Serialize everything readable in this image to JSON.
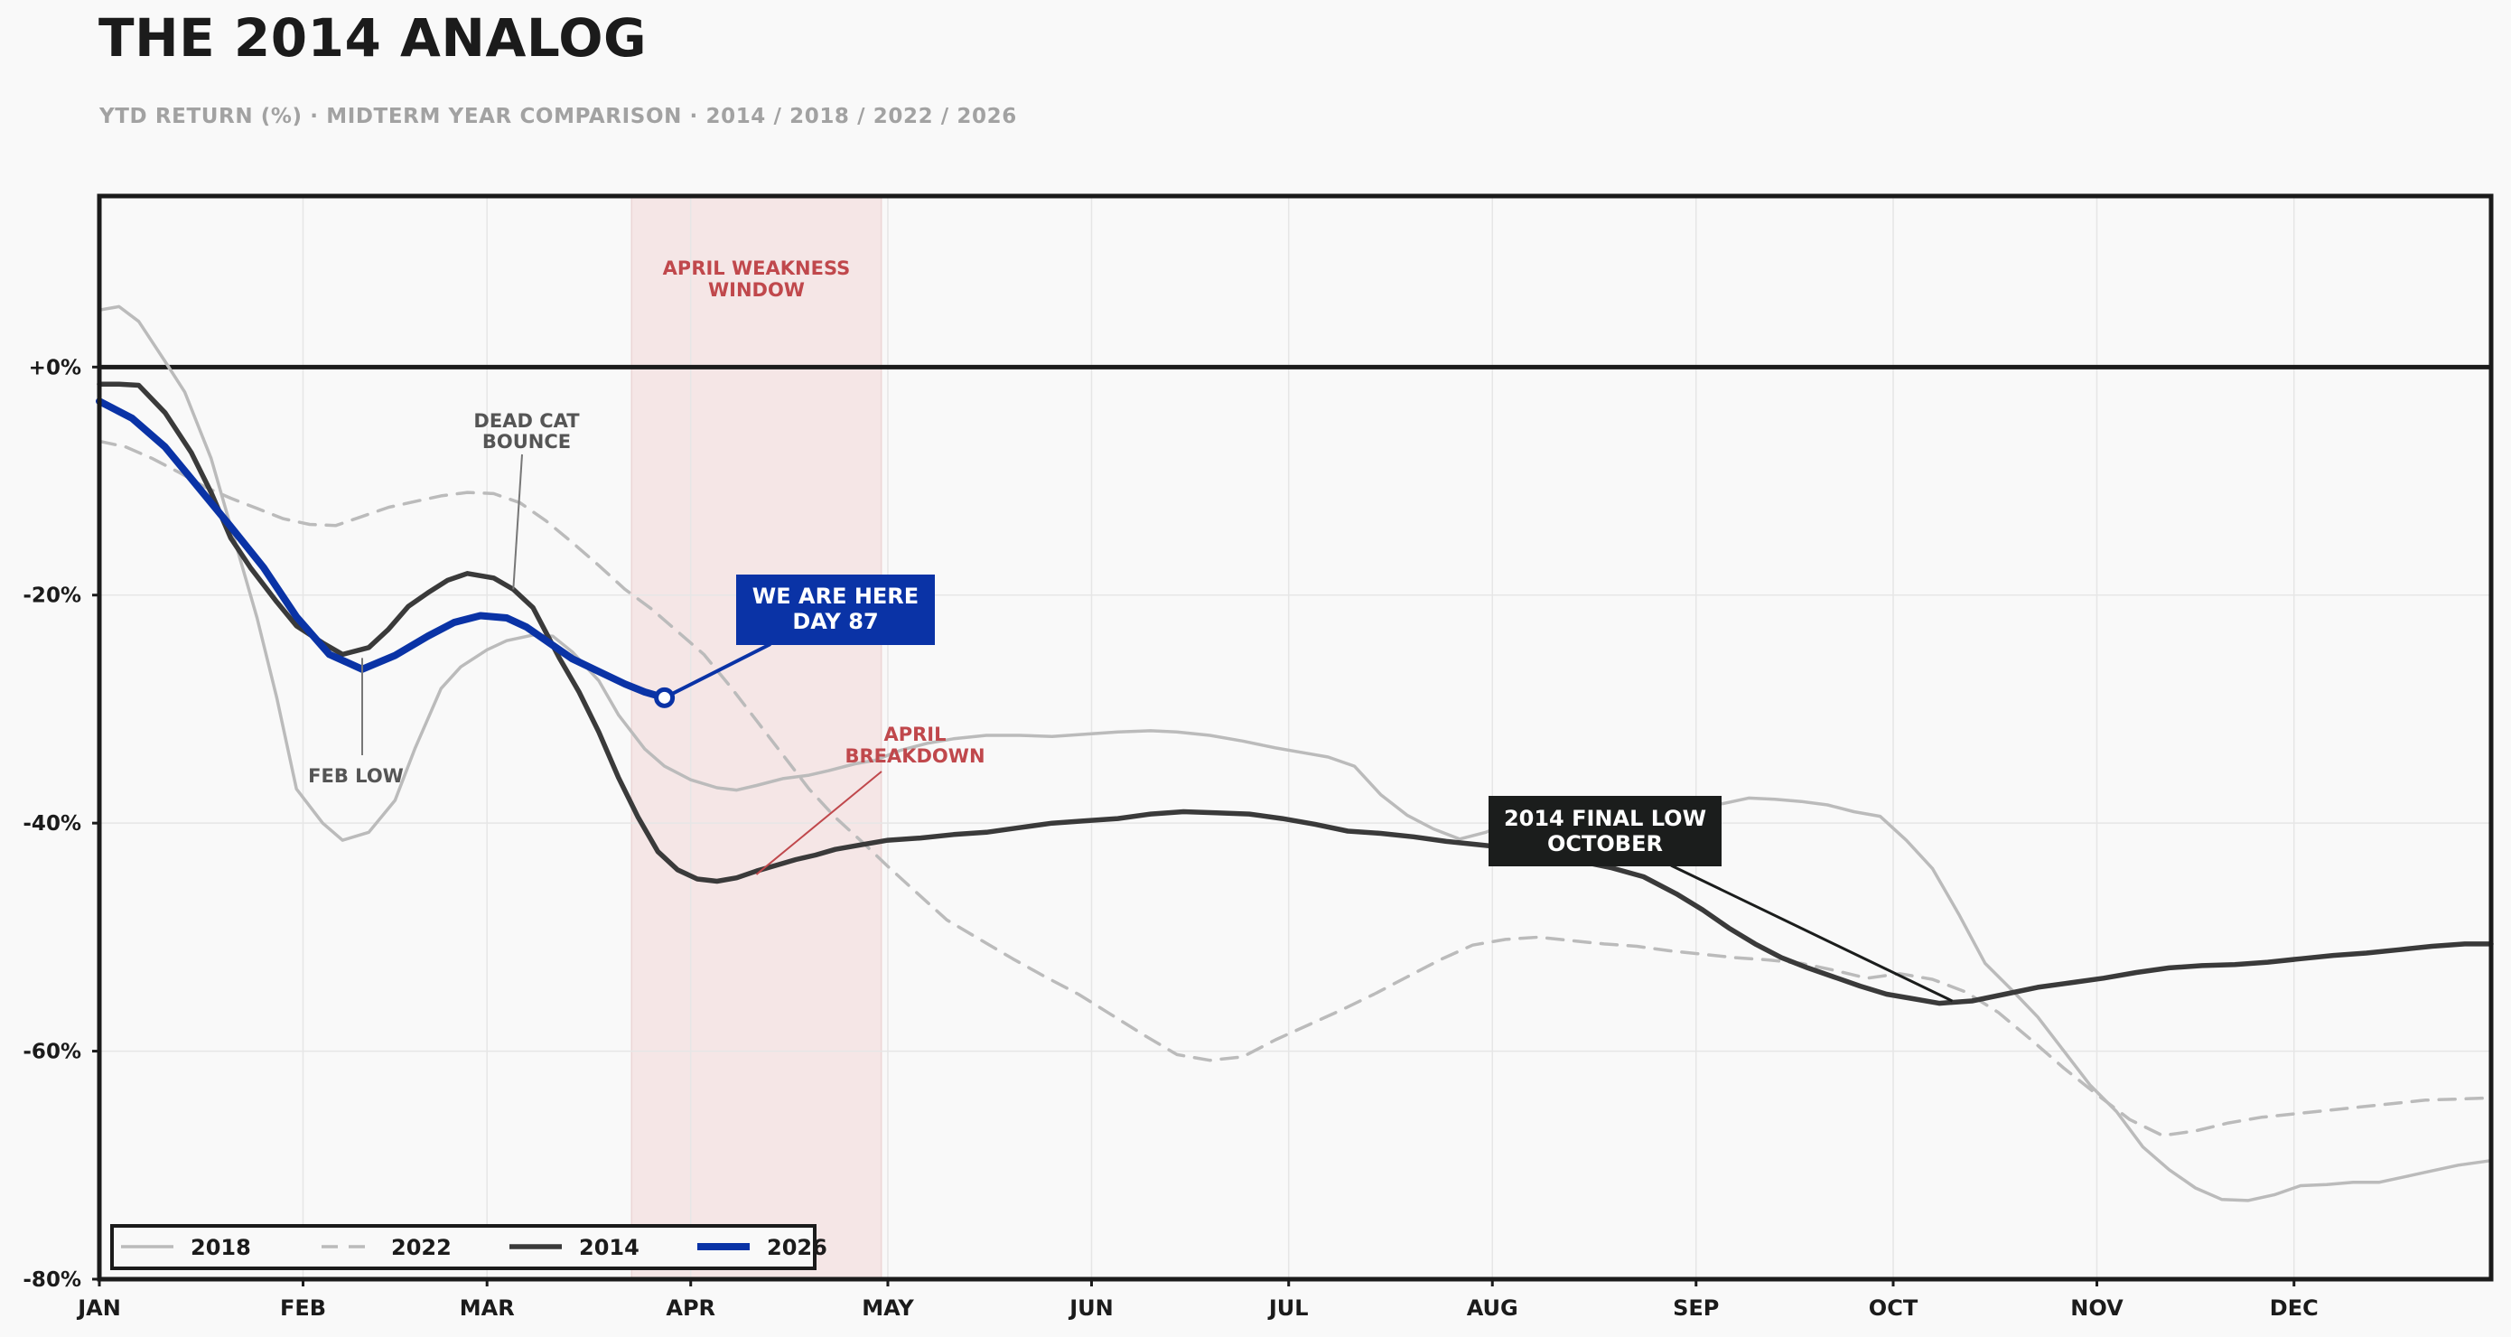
{
  "title": "THE 2014 ANALOG",
  "subtitle": "YTD RETURN (%)  ·  MIDTERM YEAR COMPARISON  ·  2014 / 2018 / 2022 / 2026",
  "chart_data": {
    "type": "line",
    "xlabel": "",
    "ylabel": "",
    "ylim": [
      -80,
      15
    ],
    "xlim": [
      1,
      365
    ],
    "grid": true,
    "legend_position": "bottom-left",
    "y_ticks": [
      0,
      -20,
      -40,
      -60,
      -80
    ],
    "y_tick_labels": [
      "+0%",
      "-20%",
      "-40%",
      "-60%",
      "-80%"
    ],
    "x_ticks": [
      {
        "day": 1,
        "label": "JAN"
      },
      {
        "day": 32,
        "label": "FEB"
      },
      {
        "day": 60,
        "label": "MAR"
      },
      {
        "day": 91,
        "label": "APR"
      },
      {
        "day": 121,
        "label": "MAY"
      },
      {
        "day": 152,
        "label": "JUN"
      },
      {
        "day": 182,
        "label": "JUL"
      },
      {
        "day": 213,
        "label": "AUG"
      },
      {
        "day": 244,
        "label": "SEP"
      },
      {
        "day": 274,
        "label": "OCT"
      },
      {
        "day": 305,
        "label": "NOV"
      },
      {
        "day": 335,
        "label": "DEC"
      }
    ],
    "shaded_region": {
      "x_start": 82,
      "x_end": 120,
      "label": "APRIL WEAKNESS\nWINDOW",
      "color": "#f5e6e6",
      "label_color": "#c0484c"
    },
    "series": [
      {
        "name": "2018",
        "color": "#bbbbbb",
        "style": "solid",
        "x": [
          1,
          4,
          7,
          11,
          14,
          18,
          21,
          25,
          28,
          31,
          35,
          38,
          42,
          46,
          49,
          53,
          56,
          60,
          63,
          67,
          70,
          73,
          77,
          80,
          84,
          87,
          91,
          95,
          98,
          101,
          105,
          109,
          112,
          116,
          119,
          123,
          127,
          131,
          136,
          141,
          146,
          151,
          156,
          161,
          165,
          170,
          175,
          180,
          185,
          188,
          192,
          196,
          200,
          204,
          208,
          212,
          216,
          220,
          224,
          228,
          232,
          236,
          240,
          244,
          248,
          252,
          256,
          260,
          264,
          268,
          272,
          276,
          280,
          284,
          288,
          292,
          296,
          300,
          304,
          308,
          312,
          316,
          320,
          324,
          328,
          332,
          336,
          340,
          344,
          348,
          352,
          356,
          360,
          365
        ],
        "y": [
          5,
          5.3,
          4,
          0.5,
          -2.2,
          -8,
          -14,
          -22,
          -29,
          -37,
          -40,
          -41.5,
          -40.8,
          -38,
          -33.5,
          -28.2,
          -26.3,
          -24.8,
          -24,
          -23.5,
          -23.6,
          -25,
          -27.5,
          -30.5,
          -33.5,
          -35,
          -36.2,
          -36.9,
          -37.1,
          -36.7,
          -36.1,
          -35.8,
          -35.4,
          -34.8,
          -34.5,
          -33.6,
          -33,
          -32.6,
          -32.3,
          -32.3,
          -32.4,
          -32.2,
          -32,
          -31.9,
          -32,
          -32.3,
          -32.8,
          -33.4,
          -33.9,
          -34.2,
          -35,
          -37.5,
          -39.3,
          -40.5,
          -41.4,
          -40.8,
          -39.8,
          -39,
          -38.5,
          -38.2,
          -38,
          -38,
          -37.9,
          -38,
          -38.3,
          -37.8,
          -37.9,
          -38.1,
          -38.4,
          -39,
          -39.4,
          -41.5,
          -44,
          -48,
          -52.3,
          -54.6,
          -57,
          -60,
          -63,
          -65.3,
          -68.4,
          -70.4,
          -72,
          -73,
          -73.1,
          -72.6,
          -71.8,
          -71.7,
          -71.5,
          -71.5,
          -71,
          -70.5,
          -70,
          -69.6
        ]
      },
      {
        "name": "2022",
        "color": "#bbbbbb",
        "style": "dashed",
        "x": [
          1,
          5,
          9,
          13,
          17,
          21,
          25,
          29,
          33,
          37,
          41,
          45,
          49,
          53,
          57,
          61,
          65,
          69,
          73,
          77,
          81,
          85,
          89,
          93,
          97,
          101,
          105,
          109,
          113,
          117,
          121,
          125,
          130,
          135,
          140,
          145,
          150,
          155,
          160,
          165,
          170,
          175,
          180,
          185,
          190,
          195,
          200,
          205,
          210,
          215,
          220,
          225,
          230,
          235,
          240,
          245,
          250,
          255,
          260,
          265,
          270,
          275,
          280,
          285,
          290,
          295,
          300,
          305,
          310,
          315,
          320,
          325,
          330,
          335,
          340,
          345,
          350,
          355,
          360,
          365
        ],
        "y": [
          -6.5,
          -7,
          -8,
          -9.2,
          -10.5,
          -11.5,
          -12.4,
          -13.3,
          -13.8,
          -13.9,
          -13.1,
          -12.3,
          -11.8,
          -11.3,
          -11,
          -11.1,
          -11.9,
          -13.5,
          -15.4,
          -17.4,
          -19.5,
          -21.2,
          -23.2,
          -25.2,
          -28,
          -31,
          -34,
          -37,
          -39.5,
          -41.6,
          -43.8,
          -45.9,
          -48.5,
          -50.2,
          -51.9,
          -53.5,
          -55,
          -56.8,
          -58.6,
          -60.3,
          -60.8,
          -60.5,
          -59,
          -57.7,
          -56.4,
          -55,
          -53.5,
          -52,
          -50.7,
          -50.2,
          -50,
          -50.3,
          -50.6,
          -50.8,
          -51.2,
          -51.5,
          -51.8,
          -52,
          -52.3,
          -52.9,
          -53.6,
          -53.2,
          -53.7,
          -54.8,
          -56.6,
          -59,
          -61.5,
          -63.8,
          -66,
          -67.4,
          -67,
          -66.3,
          -65.8,
          -65.5,
          -65.2,
          -64.9,
          -64.6,
          -64.3,
          -64.2,
          -64.1
        ]
      },
      {
        "name": "2014",
        "color": "#3a3a3a",
        "style": "solid",
        "x": [
          1,
          4,
          7,
          11,
          15,
          18,
          21,
          24,
          28,
          31,
          35,
          38,
          42,
          45,
          48,
          51,
          54,
          57,
          61,
          64,
          67,
          71,
          74,
          77,
          80,
          83,
          86,
          89,
          92,
          95,
          98,
          101,
          104,
          107,
          110,
          113,
          117,
          121,
          126,
          131,
          136,
          141,
          146,
          151,
          156,
          161,
          166,
          171,
          176,
          181,
          186,
          191,
          196,
          201,
          206,
          211,
          216,
          221,
          226,
          231,
          236,
          241,
          245,
          249,
          253,
          257,
          261,
          265,
          269,
          273,
          277,
          281,
          286,
          291,
          296,
          301,
          306,
          311,
          316,
          321,
          326,
          331,
          336,
          341,
          346,
          351,
          356,
          361,
          365
        ],
        "y": [
          -1.5,
          -1.5,
          -1.6,
          -4,
          -7.5,
          -11,
          -15,
          -17.6,
          -20.6,
          -22.7,
          -24.2,
          -25.2,
          -24.6,
          -23,
          -21,
          -19.8,
          -18.7,
          -18.1,
          -18.5,
          -19.5,
          -21.1,
          -25.5,
          -28.5,
          -32,
          -36,
          -39.5,
          -42.5,
          -44.1,
          -44.9,
          -45.1,
          -44.8,
          -44.2,
          -43.7,
          -43.2,
          -42.8,
          -42.3,
          -41.9,
          -41.5,
          -41.3,
          -41,
          -40.8,
          -40.4,
          -40,
          -39.8,
          -39.6,
          -39.2,
          -39,
          -39.1,
          -39.2,
          -39.6,
          -40.1,
          -40.7,
          -40.9,
          -41.2,
          -41.6,
          -41.9,
          -42.2,
          -42.6,
          -43.3,
          -43.9,
          -44.7,
          -46.2,
          -47.6,
          -49.2,
          -50.6,
          -51.8,
          -52.7,
          -53.5,
          -54.3,
          -55,
          -55.4,
          -55.8,
          -55.6,
          -55,
          -54.4,
          -54,
          -53.6,
          -53.1,
          -52.7,
          -52.5,
          -52.4,
          -52.2,
          -51.9,
          -51.6,
          -51.4,
          -51.1,
          -50.8,
          -50.6,
          -50.6
        ]
      },
      {
        "name": "2026",
        "color": "#0a33a6",
        "style": "solid",
        "x": [
          1,
          6,
          11,
          16,
          21,
          26,
          31,
          36,
          41,
          46,
          51,
          55,
          59,
          63,
          66,
          70,
          73,
          77,
          81,
          84,
          87
        ],
        "y": [
          -3,
          -4.5,
          -7,
          -10.5,
          -14,
          -17.6,
          -21.9,
          -25.2,
          -26.5,
          -25.3,
          -23.6,
          -22.4,
          -21.8,
          -22,
          -22.8,
          -24.4,
          -25.6,
          -26.7,
          -27.8,
          -28.5,
          -29
        ]
      }
    ],
    "annotations": [
      {
        "text": "FEB LOW",
        "x": 41,
        "y": -25.2,
        "color": "#555555"
      },
      {
        "text": "DEAD CAT\nBOUNCE",
        "x": 64,
        "y": -19.5,
        "color": "#555555"
      },
      {
        "text": "APRIL\nBREAKDOWN",
        "x": 101,
        "y": -44.5,
        "color": "#c0484c"
      },
      {
        "text": "WE ARE HERE\nDAY 87",
        "x": 87,
        "y": -29,
        "color": "#ffffff",
        "box_color": "#0a33a6"
      },
      {
        "text": "2014 FINAL LOW\nOCTOBER",
        "x": 283,
        "y": -55.6,
        "color": "#ffffff",
        "box_color": "#1b1d1c"
      }
    ]
  }
}
